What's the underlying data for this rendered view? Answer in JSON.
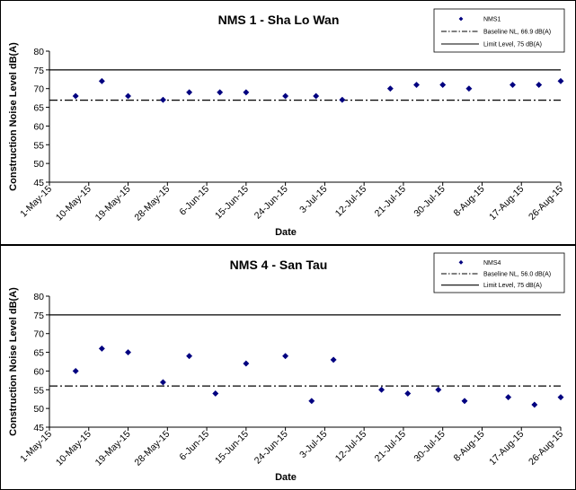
{
  "chart_data": [
    {
      "type": "scatter",
      "title": "NMS 1 - Sha Lo Wan",
      "xlabel": "Date",
      "ylabel": "Construction Noise Level  dB(A)",
      "ylim": [
        45,
        80
      ],
      "yticks": [
        45,
        50,
        55,
        60,
        65,
        70,
        75,
        80
      ],
      "xlim": [
        "1-May-15",
        "26-Aug-15"
      ],
      "xticks": [
        "1-May-15",
        "10-May-15",
        "19-May-15",
        "28-May-15",
        "6-Jun-15",
        "15-Jun-15",
        "24-Jun-15",
        "3-Jul-15",
        "12-Jul-15",
        "21-Jul-15",
        "30-Jul-15",
        "8-Aug-15",
        "17-Aug-15",
        "26-Aug-15"
      ],
      "grid": false,
      "legend_position": "top-right",
      "series": [
        {
          "name": "NMS1",
          "marker": "diamond",
          "color": "#000080",
          "x": [
            "7-May-15",
            "13-May-15",
            "19-May-15",
            "27-May-15",
            "2-Jun-15",
            "9-Jun-15",
            "15-Jun-15",
            "24-Jun-15",
            "1-Jul-15",
            "7-Jul-15",
            "18-Jul-15",
            "24-Jul-15",
            "30-Jul-15",
            "5-Aug-15",
            "15-Aug-15",
            "21-Aug-15",
            "26-Aug-15"
          ],
          "y": [
            68,
            72,
            68,
            67,
            69,
            69,
            69,
            68,
            68,
            67,
            70,
            71,
            71,
            70,
            71,
            71,
            72
          ]
        }
      ],
      "reference_lines": [
        {
          "name": "Baseline NL, 66.9 dB(A)",
          "y": 66.9,
          "style": "dash-dot",
          "color": "#000000"
        },
        {
          "name": "Limit Level, 75 dB(A)",
          "y": 75,
          "style": "solid",
          "color": "#000000"
        }
      ]
    },
    {
      "type": "scatter",
      "title": "NMS 4 - San Tau",
      "xlabel": "Date",
      "ylabel": "Construction Noise Level  dB(A)",
      "ylim": [
        45,
        80
      ],
      "yticks": [
        45,
        50,
        55,
        60,
        65,
        70,
        75,
        80
      ],
      "xlim": [
        "1-May-15",
        "26-Aug-15"
      ],
      "xticks": [
        "1-May-15",
        "10-May-15",
        "19-May-15",
        "28-May-15",
        "6-Jun-15",
        "15-Jun-15",
        "24-Jun-15",
        "3-Jul-15",
        "12-Jul-15",
        "21-Jul-15",
        "30-Jul-15",
        "8-Aug-15",
        "17-Aug-15",
        "26-Aug-15"
      ],
      "grid": false,
      "legend_position": "top-right",
      "series": [
        {
          "name": "NMS4",
          "marker": "diamond",
          "color": "#000080",
          "x": [
            "7-May-15",
            "13-May-15",
            "19-May-15",
            "27-May-15",
            "2-Jun-15",
            "8-Jun-15",
            "15-Jun-15",
            "24-Jun-15",
            "30-Jun-15",
            "5-Jul-15",
            "16-Jul-15",
            "22-Jul-15",
            "29-Jul-15",
            "4-Aug-15",
            "14-Aug-15",
            "20-Aug-15",
            "26-Aug-15"
          ],
          "y": [
            60,
            66,
            65,
            57,
            64,
            54,
            62,
            64,
            52,
            63,
            55,
            54,
            55,
            52,
            53,
            51,
            53
          ]
        }
      ],
      "reference_lines": [
        {
          "name": "Baseline NL, 56.0 dB(A)",
          "y": 56.0,
          "style": "dash-dot",
          "color": "#000000"
        },
        {
          "name": "Limit Level, 75 dB(A)",
          "y": 75,
          "style": "solid",
          "color": "#000000"
        }
      ]
    }
  ]
}
